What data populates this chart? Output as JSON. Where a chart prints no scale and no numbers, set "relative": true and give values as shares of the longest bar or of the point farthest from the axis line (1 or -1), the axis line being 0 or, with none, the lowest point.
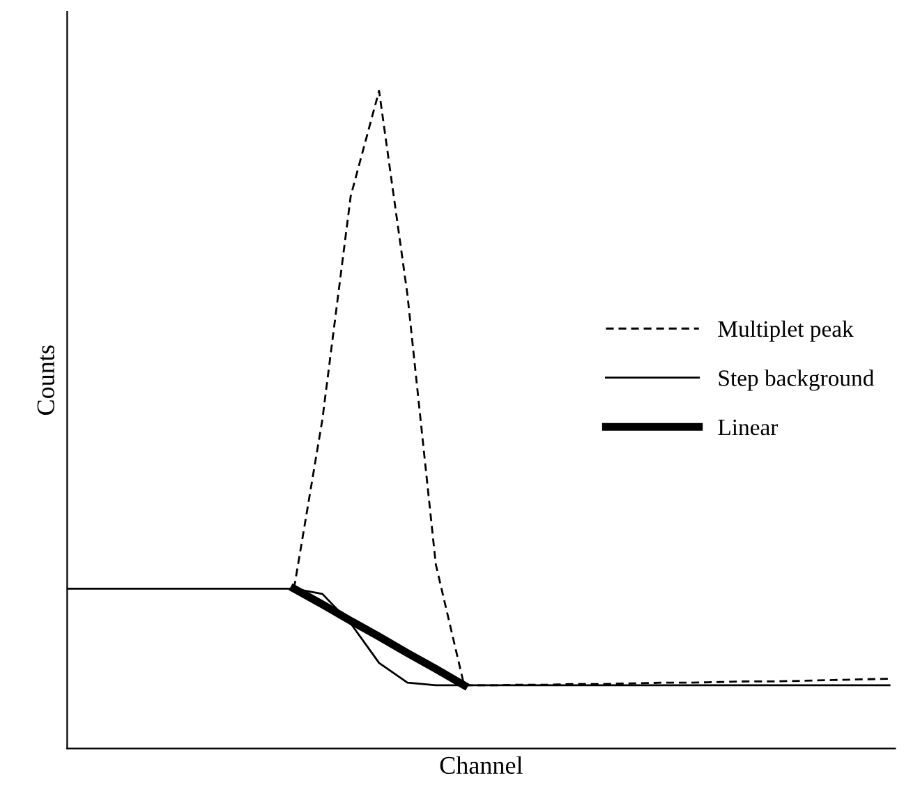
{
  "chart_data": {
    "type": "line",
    "relative": true,
    "xlabel": "Channel",
    "ylabel": "Counts",
    "legend": "right",
    "categories": [
      null,
      null,
      null,
      null,
      null,
      null,
      null,
      null,
      null,
      null,
      null,
      null,
      null,
      null,
      null,
      null,
      null,
      null,
      null,
      null,
      null,
      null,
      null,
      null,
      null,
      null,
      null,
      null,
      null,
      null
    ],
    "series": [
      {
        "name": "Multiplet peak",
        "color": "#000000",
        "line_style": "dashed",
        "values": [
          null,
          null,
          null,
          null,
          null,
          null,
          null,
          null,
          0.243,
          0.5,
          0.84,
          1.0,
          0.69,
          0.28,
          0.096,
          0.096,
          0.097,
          0.097,
          0.098,
          0.098,
          0.099,
          0.1,
          0.1,
          0.101,
          0.102,
          0.102,
          0.103,
          0.104,
          0.105,
          0.106
        ]
      },
      {
        "name": "Step background",
        "color": "#000000",
        "line_style": "solid",
        "values": [
          0.243,
          0.243,
          0.243,
          0.243,
          0.243,
          0.243,
          0.243,
          0.243,
          0.243,
          0.235,
          0.19,
          0.13,
          0.1,
          0.096,
          0.096,
          0.096,
          0.096,
          0.096,
          0.096,
          0.096,
          0.096,
          0.096,
          0.096,
          0.096,
          0.096,
          0.096,
          0.096,
          0.096,
          0.096,
          0.096
        ]
      },
      {
        "name": "Linear",
        "color": "#000000",
        "line_style": "solid",
        "values": [
          null,
          null,
          null,
          null,
          null,
          null,
          null,
          null,
          0.243,
          0.219,
          0.194,
          0.17,
          0.145,
          0.121,
          0.096,
          null,
          null,
          null,
          null,
          null,
          null,
          null,
          null,
          null,
          null,
          null,
          null,
          null,
          null,
          null
        ]
      }
    ]
  }
}
